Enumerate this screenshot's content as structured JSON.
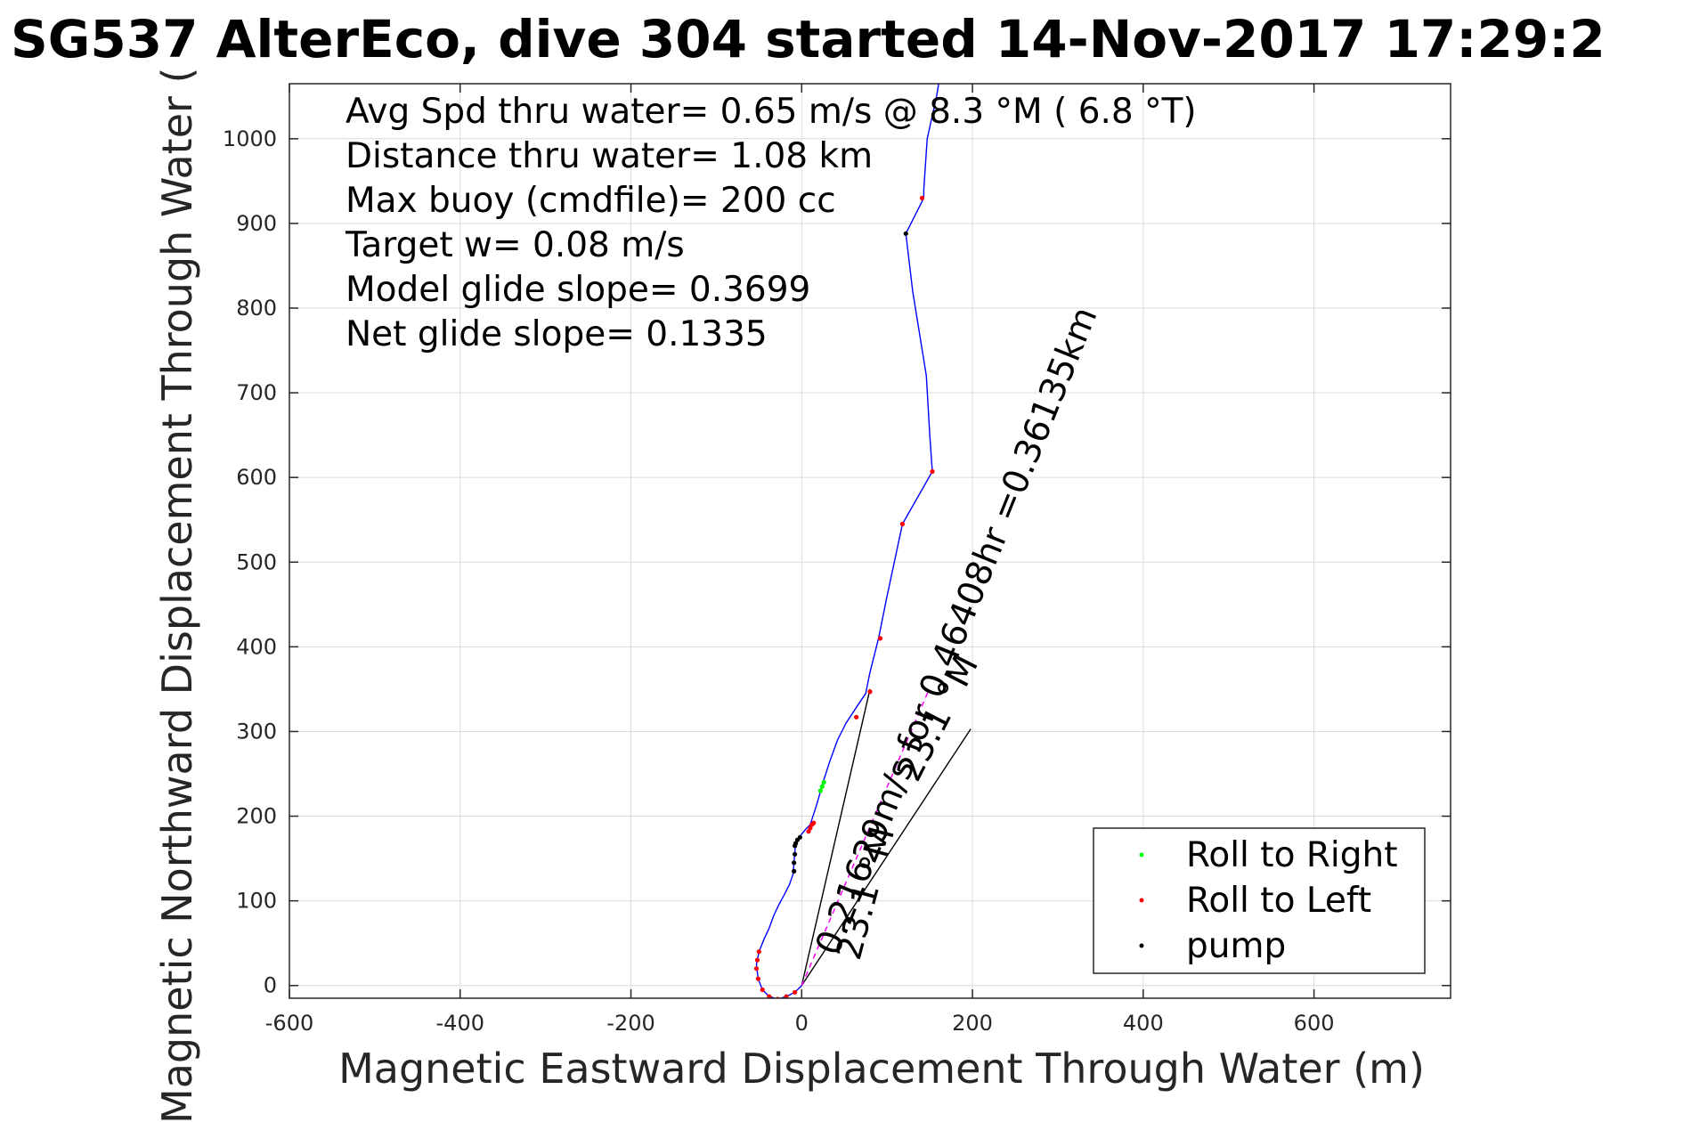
{
  "chart_data": {
    "type": "line",
    "title": "SG537 AlterEco, dive 304 started 14-Nov-2017 17:29:2",
    "xlabel": "Magnetic Eastward Displacement Through Water (m)",
    "ylabel": "Magnetic Northward Displacement Through Water (",
    "xlim": [
      -600,
      760
    ],
    "ylim": [
      -15,
      1065
    ],
    "xticks": [
      -600,
      -400,
      -200,
      0,
      200,
      400,
      600
    ],
    "yticks": [
      0,
      100,
      200,
      300,
      400,
      500,
      600,
      700,
      800,
      900,
      1000
    ],
    "grid": true,
    "info_lines": [
      "Avg Spd thru water=  0.65 m/s @   8.3 °M (  6.8 °T)",
      "Distance thru water=  1.08 km",
      "Max buoy (cmdfile)= 200 cc",
      "Target w= 0.08 m/s",
      "Model glide slope= 0.3699",
      "Net glide slope= 0.1335"
    ],
    "annotations": [
      "0.21629m/s for 0.46408hr =0.36135km",
      "23.1 °M",
      "23.1 °M"
    ],
    "track": {
      "color": "#0000ff",
      "x": [
        0,
        -8,
        -18,
        -28,
        -38,
        -46,
        -51,
        -53,
        -50,
        -44,
        -38,
        -33,
        -27,
        -20,
        -14,
        -10,
        -9,
        -8,
        -7,
        -3,
        5,
        10,
        18,
        25,
        33,
        42,
        52,
        65,
        75,
        80,
        90,
        100,
        118,
        153,
        150,
        146,
        130,
        122,
        143,
        143,
        147,
        158,
        162
      ],
      "y": [
        0,
        -8,
        -13,
        -16,
        -13,
        -5,
        8,
        25,
        40,
        55,
        68,
        82,
        95,
        108,
        120,
        132,
        145,
        158,
        168,
        175,
        185,
        190,
        215,
        240,
        265,
        290,
        310,
        330,
        345,
        370,
        410,
        460,
        545,
        607,
        650,
        720,
        820,
        888,
        930,
        940,
        1000,
        1050,
        1075
      ]
    },
    "series": [
      {
        "name": "Roll to Right",
        "color": "#00ff00",
        "x": [
          22,
          24,
          26
        ],
        "y": [
          230,
          235,
          240
        ]
      },
      {
        "name": "Roll to Left",
        "color": "#ff0000",
        "x": [
          -8,
          -18,
          -28,
          -38,
          -46,
          -51,
          -53,
          -52,
          -50,
          8,
          10,
          12,
          14,
          64,
          80,
          92,
          118,
          153,
          141
        ],
        "y": [
          -8,
          -13,
          -16,
          -13,
          -5,
          8,
          20,
          30,
          40,
          182,
          186,
          190,
          192,
          317,
          347,
          410,
          545,
          607,
          930
        ]
      },
      {
        "name": "pump",
        "color": "#000000",
        "x": [
          -9,
          -9,
          -8,
          -8,
          -7,
          -5,
          -2,
          122
        ],
        "y": [
          135,
          145,
          155,
          165,
          168,
          172,
          175,
          888
        ]
      }
    ],
    "reference_lines": [
      {
        "x": [
          0,
          80
        ],
        "y": [
          0,
          350
        ]
      },
      {
        "x": [
          0,
          198
        ],
        "y": [
          0,
          303
        ]
      }
    ],
    "dashed_line": {
      "color": "#ff00ff",
      "x": [
        0,
        148
      ],
      "y": [
        0,
        347
      ]
    },
    "legend_location": "bottom-right"
  }
}
